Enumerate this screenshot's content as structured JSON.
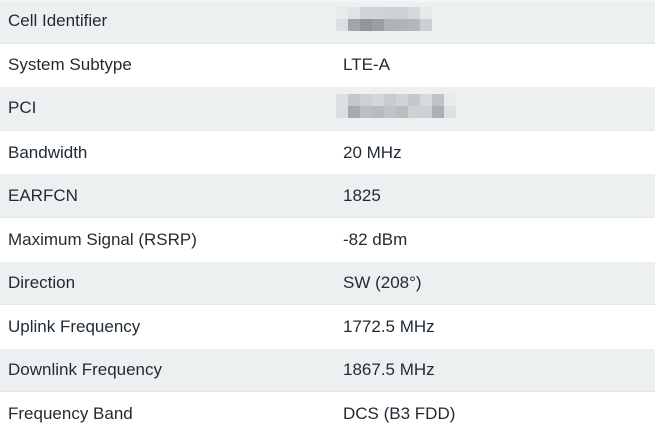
{
  "table": {
    "rows": [
      {
        "label": "Cell Identifier",
        "value": "",
        "redacted": true
      },
      {
        "label": "System Subtype",
        "value": "LTE-A",
        "redacted": false
      },
      {
        "label": "PCI",
        "value": "",
        "redacted": true
      },
      {
        "label": "Bandwidth",
        "value": "20 MHz",
        "redacted": false
      },
      {
        "label": "EARFCN",
        "value": "1825",
        "redacted": false
      },
      {
        "label": "Maximum Signal (RSRP)",
        "value": "-82 dBm",
        "redacted": false
      },
      {
        "label": "Direction",
        "value": "SW (208°)",
        "redacted": false
      },
      {
        "label": "Uplink Frequency",
        "value": "1772.5 MHz",
        "redacted": false
      },
      {
        "label": "Downlink Frequency",
        "value": "1867.5 MHz",
        "redacted": false
      },
      {
        "label": "Frequency Band",
        "value": "DCS (B3 FDD)",
        "redacted": false
      }
    ]
  },
  "colors": {
    "row_bg": "#ffffff",
    "row_alt_bg": "#edf0f1",
    "row_divider": "#e2e7e9",
    "text": "#1f2a33"
  },
  "redactions": {
    "cell_identifier": {
      "block_size": 12,
      "grid": [
        [
          "#e8ebec",
          "#e0e4e5",
          "#d0d4d6",
          "#d0d4d6",
          "#cdd1d3",
          "#ced2d4",
          "#d5d9da",
          "#e7eaeb"
        ],
        [
          "#dcdfe1",
          "#a2a6aa",
          "#92969a",
          "#9b9fa3",
          "#aeb2b5",
          "#b0b4b7",
          "#b4b8bb",
          "#cdd0d2"
        ]
      ]
    },
    "pci": {
      "block_size": 12,
      "grid": [
        [
          "#dcdfe1",
          "#c3c7c9",
          "#cdd1d3",
          "#d3d7d9",
          "#c8ccce",
          "#d0d4d6",
          "#c5c9cc",
          "#d6dadc",
          "#bfc3c6",
          "#e9ecec"
        ],
        [
          "#dcdfe1",
          "#a7abae",
          "#bcc0c2",
          "#b8bcbf",
          "#c0c4c6",
          "#babec1",
          "#ced2d3",
          "#cdd1d3",
          "#acb0b3",
          "#dfe2e3"
        ]
      ]
    }
  }
}
